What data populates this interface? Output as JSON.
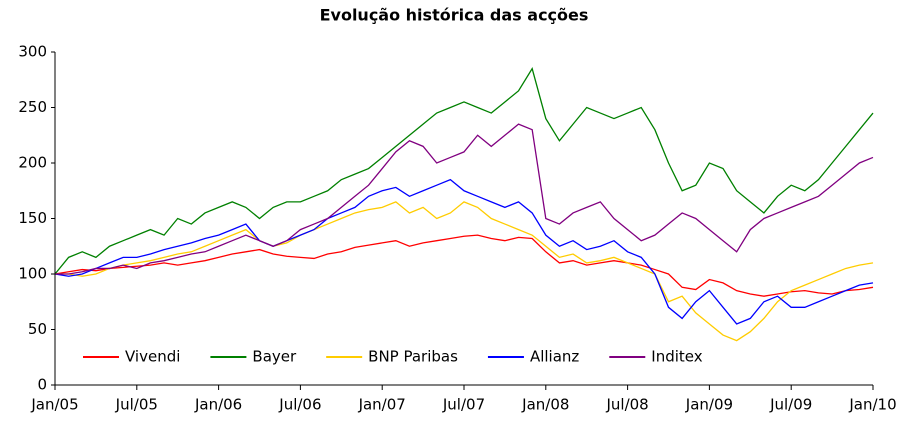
{
  "chart_data": {
    "type": "line",
    "title": "Evolução histórica das acções",
    "categories": [
      "Jan/05",
      null,
      null,
      null,
      null,
      null,
      "Jul/05",
      null,
      null,
      null,
      null,
      null,
      "Jan/06",
      null,
      null,
      null,
      null,
      null,
      "Jul/06",
      null,
      null,
      null,
      null,
      null,
      "Jan/07",
      null,
      null,
      null,
      null,
      null,
      "Jul/07",
      null,
      null,
      null,
      null,
      null,
      "Jan/08",
      null,
      null,
      null,
      null,
      null,
      "Jul/08",
      null,
      null,
      null,
      null,
      null,
      "Jan/09",
      null,
      null,
      null,
      null,
      null,
      "Jul/09",
      null,
      null,
      null,
      null,
      null,
      "Jan/10"
    ],
    "series": [
      {
        "name": "Vivendi",
        "color": "#ff0000",
        "values": [
          100,
          102,
          104,
          103,
          105,
          106,
          107,
          108,
          110,
          108,
          110,
          112,
          115,
          118,
          120,
          122,
          118,
          116,
          115,
          114,
          118,
          120,
          124,
          126,
          128,
          130,
          125,
          128,
          130,
          132,
          134,
          135,
          132,
          130,
          133,
          132,
          120,
          110,
          112,
          108,
          110,
          112,
          110,
          108,
          104,
          100,
          88,
          86,
          95,
          92,
          85,
          82,
          80,
          82,
          84,
          85,
          83,
          82,
          85,
          86,
          88
        ]
      },
      {
        "name": "Bayer",
        "color": "#008000",
        "values": [
          100,
          115,
          120,
          115,
          125,
          130,
          135,
          140,
          135,
          150,
          145,
          155,
          160,
          165,
          160,
          150,
          160,
          165,
          165,
          170,
          175,
          185,
          190,
          195,
          205,
          215,
          225,
          235,
          245,
          250,
          255,
          250,
          245,
          255,
          265,
          285,
          240,
          220,
          235,
          250,
          245,
          240,
          245,
          250,
          230,
          200,
          175,
          180,
          200,
          195,
          175,
          165,
          155,
          170,
          180,
          175,
          185,
          200,
          215,
          230,
          245
        ]
      },
      {
        "name": "BNP Paribas",
        "color": "#ffcc00",
        "values": [
          100,
          100,
          98,
          100,
          105,
          108,
          110,
          112,
          115,
          118,
          120,
          125,
          130,
          135,
          140,
          130,
          125,
          128,
          135,
          140,
          145,
          150,
          155,
          158,
          160,
          165,
          155,
          160,
          150,
          155,
          165,
          160,
          150,
          145,
          140,
          135,
          125,
          115,
          118,
          110,
          112,
          115,
          110,
          105,
          100,
          75,
          80,
          65,
          55,
          45,
          40,
          48,
          60,
          75,
          85,
          90,
          95,
          100,
          105,
          108,
          110
        ]
      },
      {
        "name": "Allianz",
        "color": "#0000ff",
        "values": [
          100,
          98,
          100,
          105,
          110,
          115,
          115,
          118,
          122,
          125,
          128,
          132,
          135,
          140,
          145,
          130,
          125,
          130,
          135,
          140,
          150,
          155,
          160,
          170,
          175,
          178,
          170,
          175,
          180,
          185,
          175,
          170,
          165,
          160,
          165,
          155,
          135,
          125,
          130,
          122,
          125,
          130,
          120,
          115,
          100,
          70,
          60,
          75,
          85,
          70,
          55,
          60,
          75,
          80,
          70,
          70,
          75,
          80,
          85,
          90,
          92
        ]
      },
      {
        "name": "Inditex",
        "color": "#800080",
        "values": [
          100,
          100,
          102,
          105,
          105,
          108,
          105,
          110,
          112,
          115,
          118,
          120,
          125,
          130,
          135,
          130,
          125,
          130,
          140,
          145,
          150,
          160,
          170,
          180,
          195,
          210,
          220,
          215,
          200,
          205,
          210,
          225,
          215,
          225,
          235,
          230,
          150,
          145,
          155,
          160,
          165,
          150,
          140,
          130,
          135,
          145,
          155,
          150,
          140,
          130,
          120,
          140,
          150,
          155,
          160,
          165,
          170,
          180,
          190,
          200,
          205
        ]
      }
    ],
    "ylim": [
      0,
      300
    ],
    "yticks": [
      0,
      50,
      100,
      150,
      200,
      250,
      300
    ],
    "grid": false,
    "legend": "lower left"
  }
}
